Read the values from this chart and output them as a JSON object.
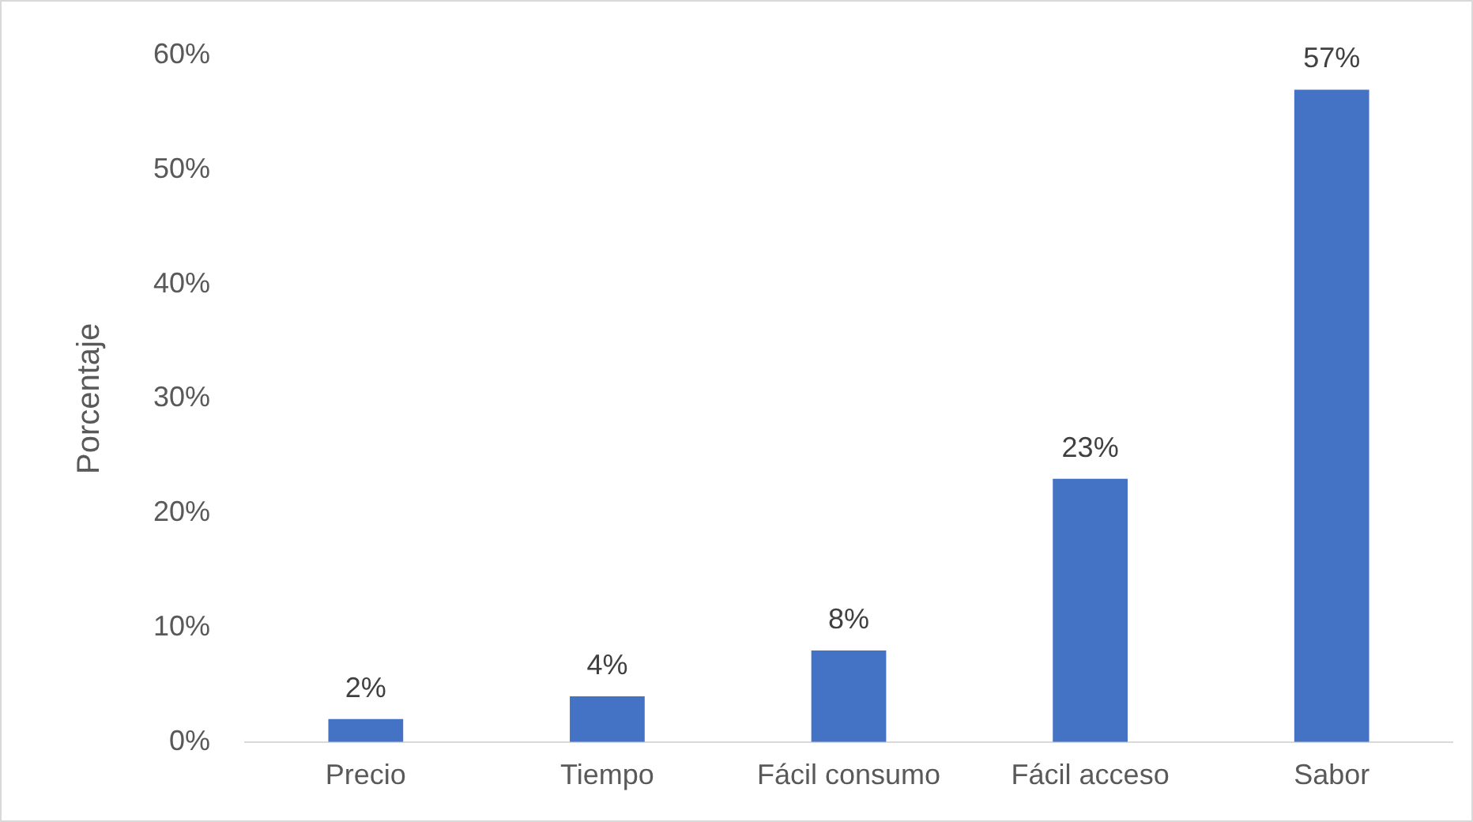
{
  "chart_data": {
    "type": "bar",
    "ylabel": "Porcentaje",
    "categories": [
      "Precio",
      "Tiempo",
      "Fácil consumo",
      "Fácil acceso",
      "Sabor"
    ],
    "values": [
      2,
      4,
      8,
      23,
      57
    ],
    "value_labels": [
      "2%",
      "4%",
      "8%",
      "23%",
      "57%"
    ],
    "color": "#4472c4",
    "ylim": [
      0,
      60
    ],
    "yticks": [
      {
        "value": 0,
        "label": "0%"
      },
      {
        "value": 10,
        "label": "10%"
      },
      {
        "value": 20,
        "label": "20%"
      },
      {
        "value": 30,
        "label": "30%"
      },
      {
        "value": 40,
        "label": "40%"
      },
      {
        "value": 50,
        "label": "50%"
      },
      {
        "value": 60,
        "label": "60%"
      }
    ],
    "grid": false,
    "legend": false
  }
}
